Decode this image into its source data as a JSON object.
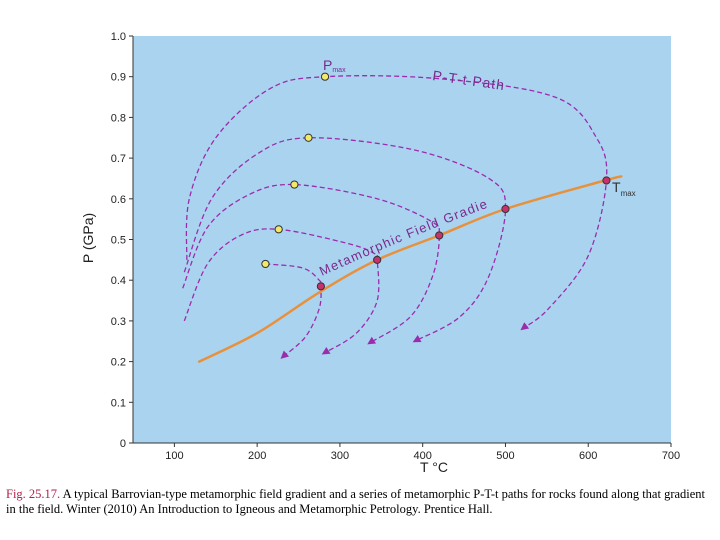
{
  "chart_data": {
    "type": "line",
    "xlabel": "T °C",
    "ylabel": "P (GPa)",
    "xlim": [
      50,
      700
    ],
    "ylim": [
      0,
      1.0
    ],
    "x_ticks": [
      "100",
      "200",
      "300",
      "400",
      "500",
      "600",
      "700"
    ],
    "y_ticks": [
      "0",
      "0.1",
      "0.2",
      "0.3",
      "0.4",
      "0.5",
      "0.6",
      "0.7",
      "0.8",
      "0.9",
      "1.0"
    ],
    "colors": {
      "background": "#aad3ef",
      "gradient": "#e8913c",
      "paths": "#9b2dad",
      "pmax_dot": "#f2e86a",
      "tmax_dot": "#c8316e"
    },
    "gradient_label": "Metamorphic Field Gradient",
    "path_label": "P-T-t Path",
    "pmax_label": "P",
    "pmax_sub": "max",
    "tmax_label": "T",
    "tmax_sub": "max",
    "gradient_curve": [
      [
        130,
        0.2
      ],
      [
        200,
        0.27
      ],
      [
        275,
        0.37
      ],
      [
        345,
        0.45
      ],
      [
        420,
        0.51
      ],
      [
        500,
        0.575
      ],
      [
        620,
        0.645
      ],
      [
        640,
        0.655
      ]
    ],
    "pmax_points": [
      [
        282,
        0.9
      ],
      [
        262,
        0.75
      ],
      [
        245,
        0.635
      ],
      [
        226,
        0.525
      ],
      [
        210,
        0.44
      ]
    ],
    "tmax_points": [
      [
        277,
        0.385
      ],
      [
        345,
        0.45
      ],
      [
        420,
        0.51
      ],
      [
        500,
        0.575
      ],
      [
        622,
        0.645
      ]
    ],
    "paths": [
      {
        "points": [
          [
            115,
            0.45
          ],
          [
            118,
            0.6
          ],
          [
            150,
            0.75
          ],
          [
            215,
            0.87
          ],
          [
            282,
            0.9
          ],
          [
            420,
            0.895
          ],
          [
            560,
            0.85
          ],
          [
            610,
            0.75
          ],
          [
            622,
            0.645
          ],
          [
            600,
            0.46
          ],
          [
            552,
            0.33
          ],
          [
            520,
            0.28
          ]
        ]
      },
      {
        "points": [
          [
            112,
            0.42
          ],
          [
            145,
            0.6
          ],
          [
            200,
            0.71
          ],
          [
            262,
            0.75
          ],
          [
            390,
            0.72
          ],
          [
            480,
            0.65
          ],
          [
            500,
            0.575
          ],
          [
            480,
            0.41
          ],
          [
            445,
            0.31
          ],
          [
            390,
            0.25
          ]
        ]
      },
      {
        "points": [
          [
            110,
            0.38
          ],
          [
            140,
            0.53
          ],
          [
            190,
            0.61
          ],
          [
            245,
            0.635
          ],
          [
            345,
            0.6
          ],
          [
            410,
            0.545
          ],
          [
            420,
            0.51
          ],
          [
            412,
            0.41
          ],
          [
            385,
            0.31
          ],
          [
            335,
            0.245
          ]
        ]
      },
      {
        "points": [
          [
            112,
            0.3
          ],
          [
            140,
            0.44
          ],
          [
            180,
            0.51
          ],
          [
            226,
            0.525
          ],
          [
            310,
            0.49
          ],
          [
            342,
            0.465
          ],
          [
            345,
            0.45
          ],
          [
            345,
            0.35
          ],
          [
            320,
            0.27
          ],
          [
            280,
            0.22
          ]
        ]
      },
      {
        "points": [
          [
            210,
            0.44
          ],
          [
            255,
            0.43
          ],
          [
            275,
            0.4
          ],
          [
            277,
            0.385
          ],
          [
            275,
            0.33
          ],
          [
            258,
            0.26
          ],
          [
            230,
            0.21
          ]
        ]
      }
    ]
  },
  "caption": {
    "fig_label": "Fig. 25.17.",
    "text": " A typical Barrovian-type metamorphic field gradient and a series of metamorphic P-T-t paths for rocks found along that gradient in the field. Winter (2010) An Introduction to Igneous and Metamorphic Petrology. Prentice Hall."
  }
}
